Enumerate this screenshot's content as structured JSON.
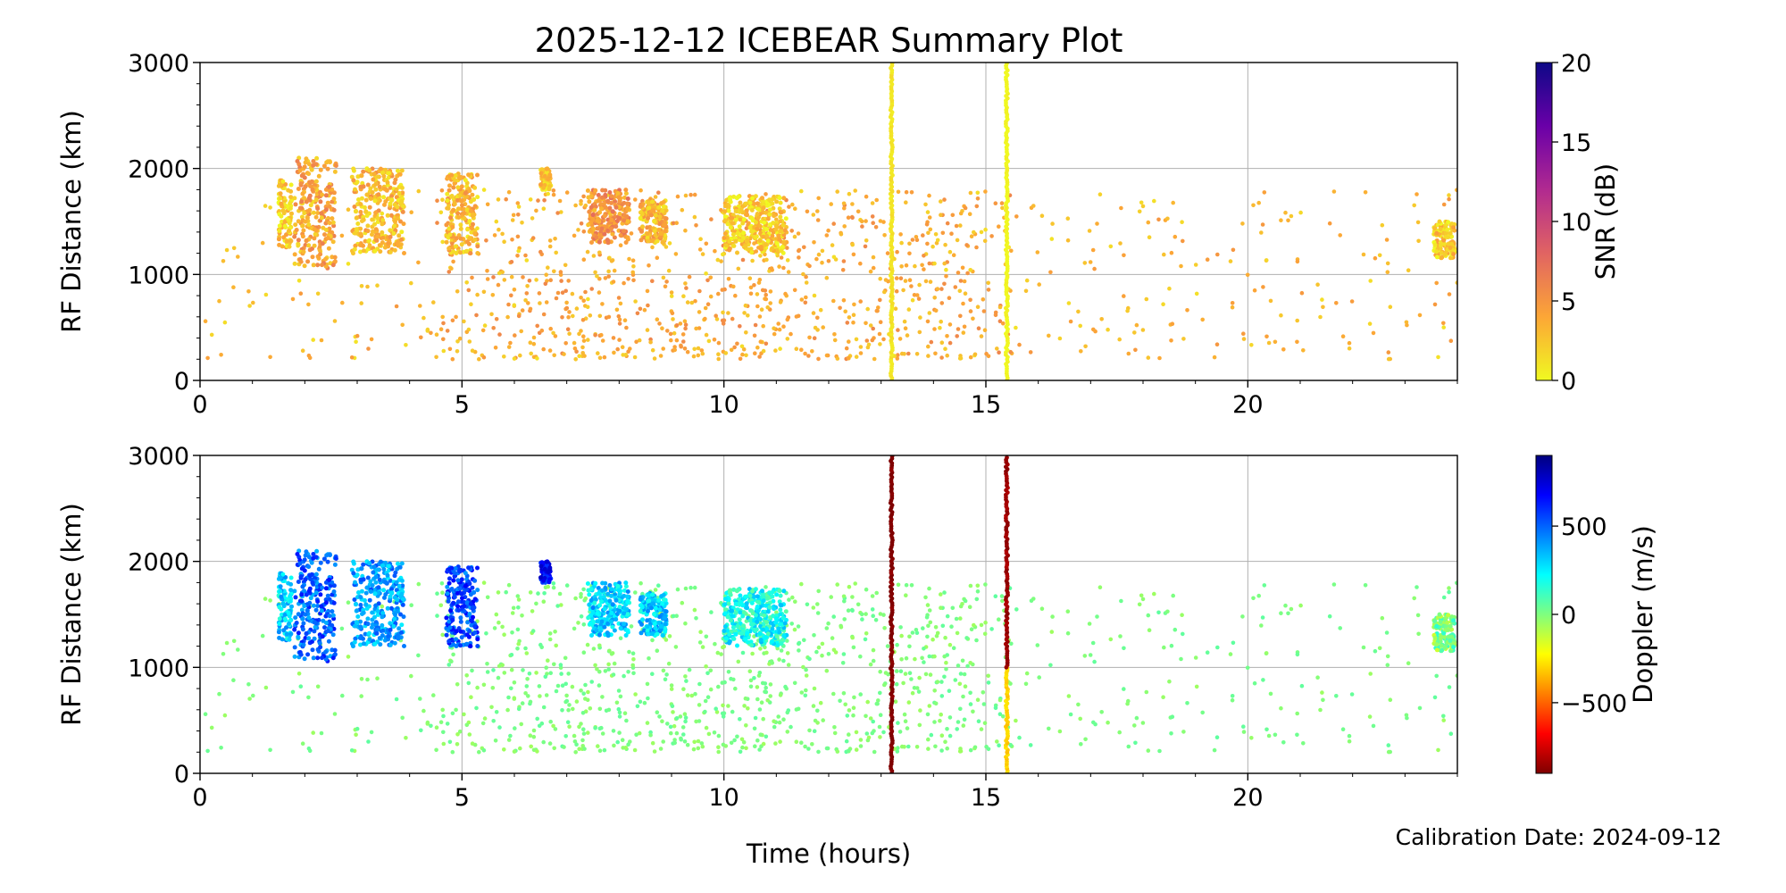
{
  "title": "2025-12-12 ICEBEAR Summary Plot",
  "xlabel": "Time (hours)",
  "calibration_text": "Calibration Date: 2024-09-12",
  "chart_data": [
    {
      "type": "scatter",
      "name": "snr-panel",
      "ylabel": "RF Distance (km)",
      "xlim": [
        0,
        24
      ],
      "ylim": [
        0,
        3000
      ],
      "xticks": [
        0,
        5,
        10,
        15,
        20
      ],
      "yticks": [
        0,
        1000,
        2000,
        3000
      ],
      "grid": true,
      "colorbar": {
        "label": "SNR (dB)",
        "range": [
          0,
          20
        ],
        "ticks": [
          0,
          5,
          10,
          15,
          20
        ],
        "colormap": "plasma_r",
        "colors": [
          "#f0f921",
          "#fca636",
          "#e16462",
          "#b12a90",
          "#6a00a8",
          "#0d0887"
        ]
      },
      "clusters": [
        {
          "x": [
            1.5,
            1.75
          ],
          "y": [
            1250,
            1900
          ],
          "value": 2
        },
        {
          "x": [
            1.8,
            2.6
          ],
          "y": [
            1050,
            2100
          ],
          "value": 4
        },
        {
          "x": [
            2.9,
            3.9
          ],
          "y": [
            1200,
            2000
          ],
          "value": 3
        },
        {
          "x": [
            4.7,
            5.3
          ],
          "y": [
            1200,
            1950
          ],
          "value": 3
        },
        {
          "x": [
            6.5,
            6.7
          ],
          "y": [
            1800,
            2000
          ],
          "value": 2
        },
        {
          "x": [
            7.4,
            8.2
          ],
          "y": [
            1300,
            1800
          ],
          "value": 5
        },
        {
          "x": [
            8.4,
            8.9
          ],
          "y": [
            1300,
            1700
          ],
          "value": 3
        },
        {
          "x": [
            10.0,
            11.2
          ],
          "y": [
            1200,
            1750
          ],
          "value": 2
        },
        {
          "x": [
            23.55,
            23.95
          ],
          "y": [
            1150,
            1500
          ],
          "value": 2
        }
      ],
      "scatter_regions": [
        {
          "x": [
            4.5,
            15.5
          ],
          "y": [
            200,
            1800
          ],
          "value": 4
        },
        {
          "x": [
            0.1,
            24.0
          ],
          "y": [
            200,
            1800
          ],
          "value": 3
        }
      ],
      "vertical_lines": [
        {
          "x": 13.2,
          "y": [
            0,
            3000
          ],
          "value": 1
        },
        {
          "x": 15.4,
          "y": [
            0,
            3000
          ],
          "value": 0
        }
      ]
    },
    {
      "type": "scatter",
      "name": "doppler-panel",
      "ylabel": "RF Distance (km)",
      "xlim": [
        0,
        24
      ],
      "ylim": [
        0,
        3000
      ],
      "xticks": [
        0,
        5,
        10,
        15,
        20
      ],
      "yticks": [
        0,
        1000,
        2000,
        3000
      ],
      "grid": true,
      "colorbar": {
        "label": "Doppler (m/s)",
        "range": [
          -900,
          900
        ],
        "ticks": [
          -500,
          0,
          500
        ],
        "colormap": "jet_r",
        "colors": [
          "#7f0000",
          "#ff0000",
          "#ff7f00",
          "#ffff00",
          "#7fff7f",
          "#00ffff",
          "#007fff",
          "#0000ff",
          "#00007f"
        ]
      },
      "clusters": [
        {
          "x": [
            1.5,
            1.75
          ],
          "y": [
            1250,
            1900
          ],
          "value": 300
        },
        {
          "x": [
            1.8,
            2.6
          ],
          "y": [
            1050,
            2100
          ],
          "value": 500
        },
        {
          "x": [
            2.9,
            3.9
          ],
          "y": [
            1200,
            2000
          ],
          "value": 400
        },
        {
          "x": [
            4.7,
            5.3
          ],
          "y": [
            1200,
            1950
          ],
          "value": 550
        },
        {
          "x": [
            6.5,
            6.7
          ],
          "y": [
            1800,
            2000
          ],
          "value": 650
        },
        {
          "x": [
            7.4,
            8.2
          ],
          "y": [
            1300,
            1800
          ],
          "value": 300
        },
        {
          "x": [
            8.4,
            8.9
          ],
          "y": [
            1300,
            1700
          ],
          "value": 300
        },
        {
          "x": [
            10.0,
            11.2
          ],
          "y": [
            1200,
            1750
          ],
          "value": 200
        },
        {
          "x": [
            23.55,
            23.95
          ],
          "y": [
            1150,
            1500
          ],
          "value": 0
        }
      ],
      "scatter_regions": [
        {
          "x": [
            4.5,
            15.5
          ],
          "y": [
            200,
            1800
          ],
          "value": 0
        },
        {
          "x": [
            0.1,
            24.0
          ],
          "y": [
            200,
            1800
          ],
          "value": 0
        }
      ],
      "vertical_lines": [
        {
          "x": 13.2,
          "y": [
            0,
            3000
          ],
          "value": -900
        },
        {
          "x": 15.4,
          "y": [
            0,
            1000
          ],
          "value": -300
        },
        {
          "x": 15.4,
          "y": [
            1000,
            3000
          ],
          "value": -850
        }
      ]
    }
  ]
}
